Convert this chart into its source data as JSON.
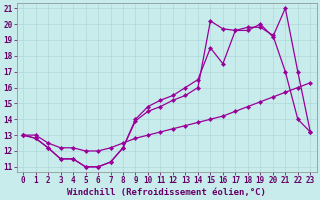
{
  "title": "",
  "xlabel": "Windchill (Refroidissement éolien,°C)",
  "ylabel": "",
  "background_color": "#c8ecec",
  "grid_color": "#b0d8d8",
  "line_color": "#990099",
  "xlim": [
    -0.5,
    23.5
  ],
  "ylim": [
    10.7,
    21.3
  ],
  "xticks": [
    0,
    1,
    2,
    3,
    4,
    5,
    6,
    7,
    8,
    9,
    10,
    11,
    12,
    13,
    14,
    15,
    16,
    17,
    18,
    19,
    20,
    21,
    22,
    23
  ],
  "yticks": [
    11,
    12,
    13,
    14,
    15,
    16,
    17,
    18,
    19,
    20,
    21
  ],
  "line1_x": [
    0,
    1,
    2,
    3,
    4,
    5,
    6,
    7,
    8,
    9,
    10,
    11,
    12,
    13,
    14,
    15,
    16,
    17,
    18,
    19,
    20,
    21,
    22,
    23
  ],
  "line1_y": [
    13.0,
    12.8,
    12.2,
    11.5,
    11.5,
    11.0,
    11.0,
    11.3,
    12.2,
    13.9,
    14.5,
    14.8,
    15.2,
    15.5,
    16.0,
    20.2,
    19.7,
    19.6,
    19.8,
    19.8,
    19.3,
    17.0,
    14.0,
    13.2
  ],
  "line2_x": [
    0,
    1,
    2,
    3,
    4,
    5,
    6,
    7,
    8,
    9,
    10,
    11,
    12,
    13,
    14,
    15,
    16,
    17,
    18,
    19,
    20,
    21,
    22,
    23
  ],
  "line2_y": [
    13.0,
    13.0,
    12.5,
    12.2,
    12.2,
    12.0,
    12.0,
    12.2,
    12.5,
    12.8,
    13.0,
    13.2,
    13.4,
    13.6,
    13.8,
    14.0,
    14.2,
    14.5,
    14.8,
    15.1,
    15.4,
    15.7,
    16.0,
    16.3
  ],
  "line3_x": [
    0,
    1,
    2,
    3,
    4,
    5,
    6,
    7,
    8,
    9,
    10,
    11,
    12,
    13,
    14,
    15,
    16,
    17,
    18,
    19,
    20,
    21,
    22,
    23
  ],
  "line3_y": [
    13.0,
    12.8,
    12.2,
    11.5,
    11.5,
    11.0,
    11.0,
    11.3,
    12.2,
    14.0,
    14.8,
    15.2,
    15.5,
    16.0,
    16.5,
    18.5,
    17.5,
    19.6,
    19.6,
    20.0,
    19.2,
    21.0,
    17.0,
    13.2
  ],
  "marker": "D",
  "markersize": 2.2,
  "linewidth": 0.9,
  "tick_fontsize": 5.5,
  "label_fontsize": 6.5
}
